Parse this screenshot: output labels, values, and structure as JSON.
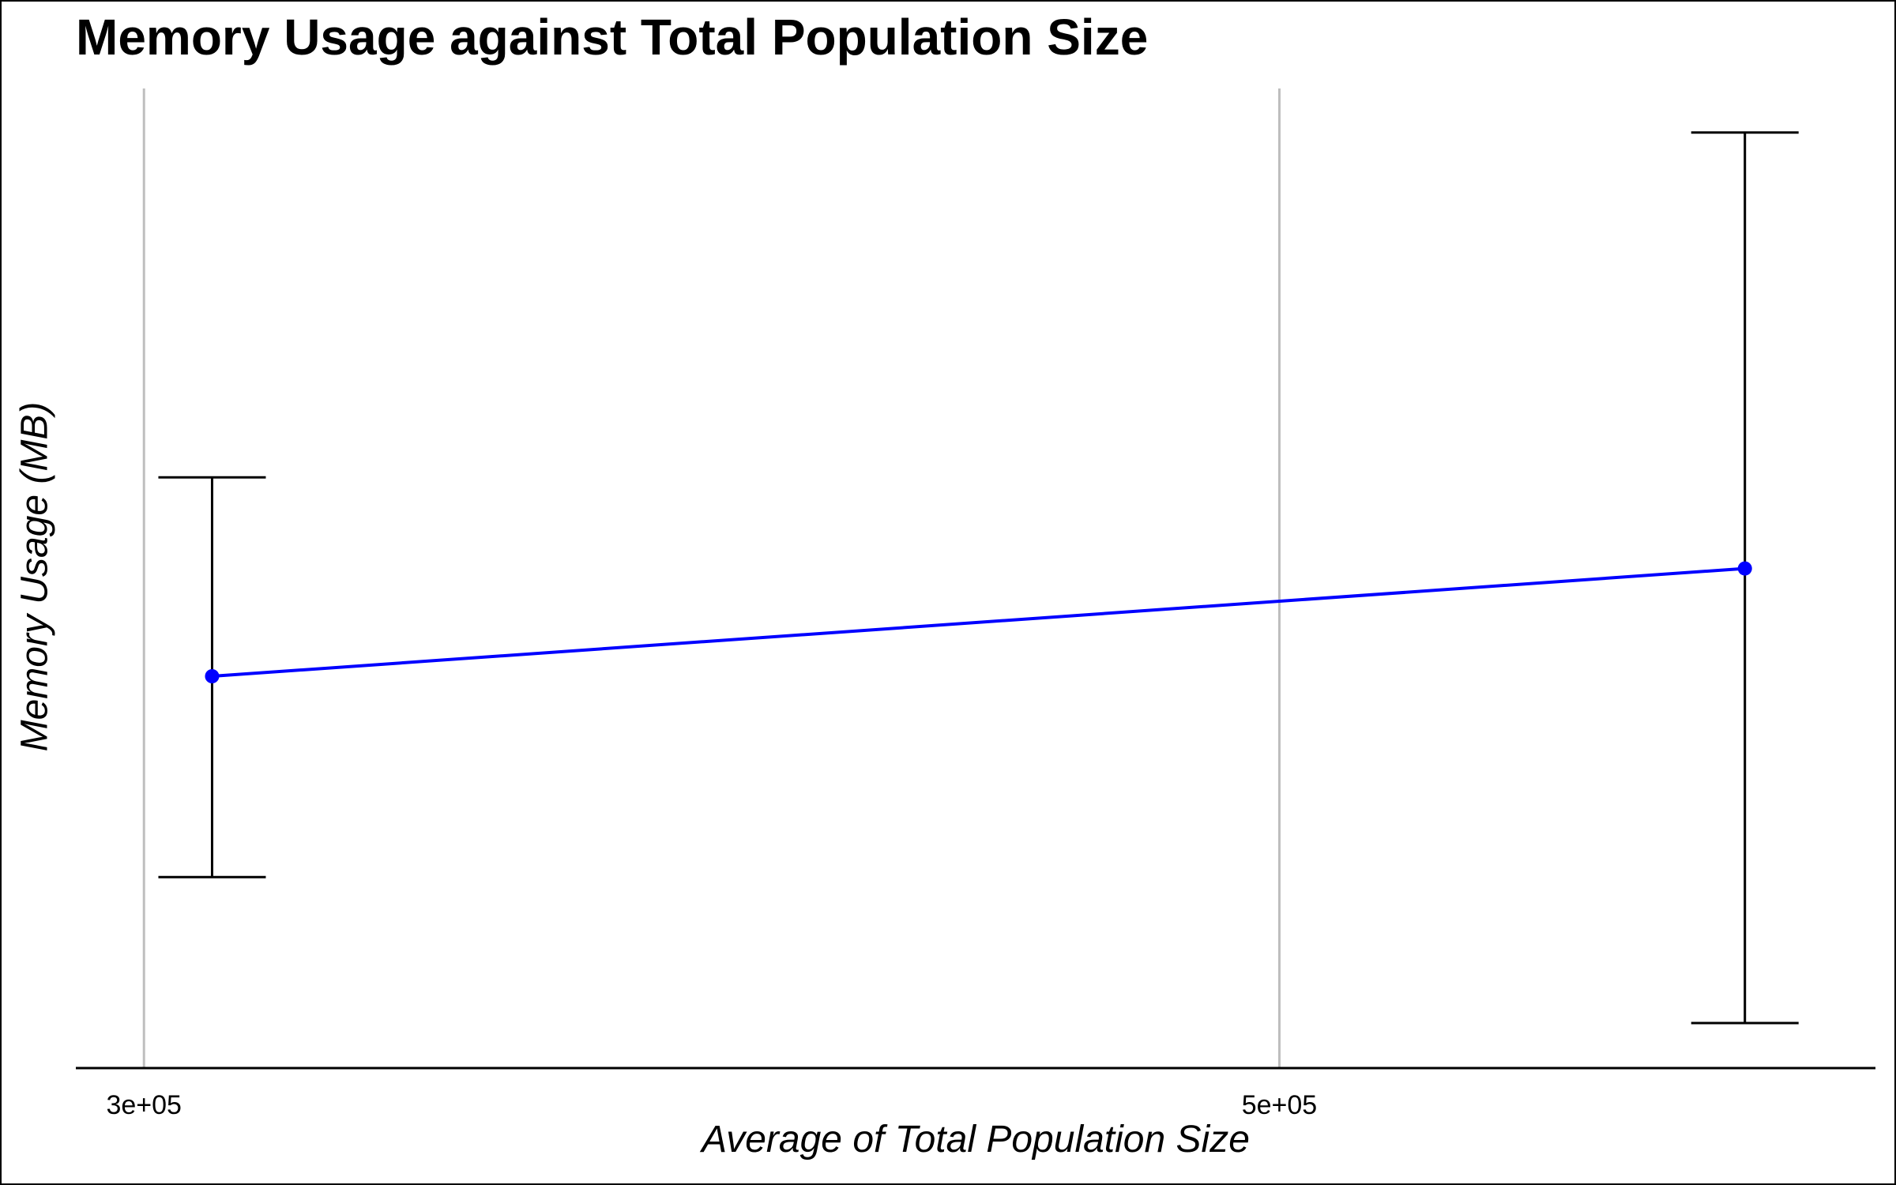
{
  "chart_data": {
    "type": "line",
    "title": "Memory Usage against Total Population Size",
    "xlabel": "Average of Total Population Size",
    "ylabel": "Memory Usage (MB)",
    "x_ticks": [
      300000,
      500000
    ],
    "x_tick_labels": [
      "3e+05",
      "5e+05"
    ],
    "xlim": [
      288000,
      605000
    ],
    "y_ticks": [],
    "ylim": [
      0,
      100
    ],
    "grid": "vertical-major",
    "legend": "none",
    "series": [
      {
        "x": [
          312000,
          582000
        ],
        "y": [
          40,
          51
        ],
        "error_low": [
          19.5,
          4.6
        ],
        "error_high": [
          60.3,
          95.5
        ]
      }
    ],
    "colors": {
      "line": "#0000ff",
      "point": "#0000ff",
      "errorbar": "#000000",
      "grid": "#bebebe",
      "axis": "#000000"
    }
  }
}
